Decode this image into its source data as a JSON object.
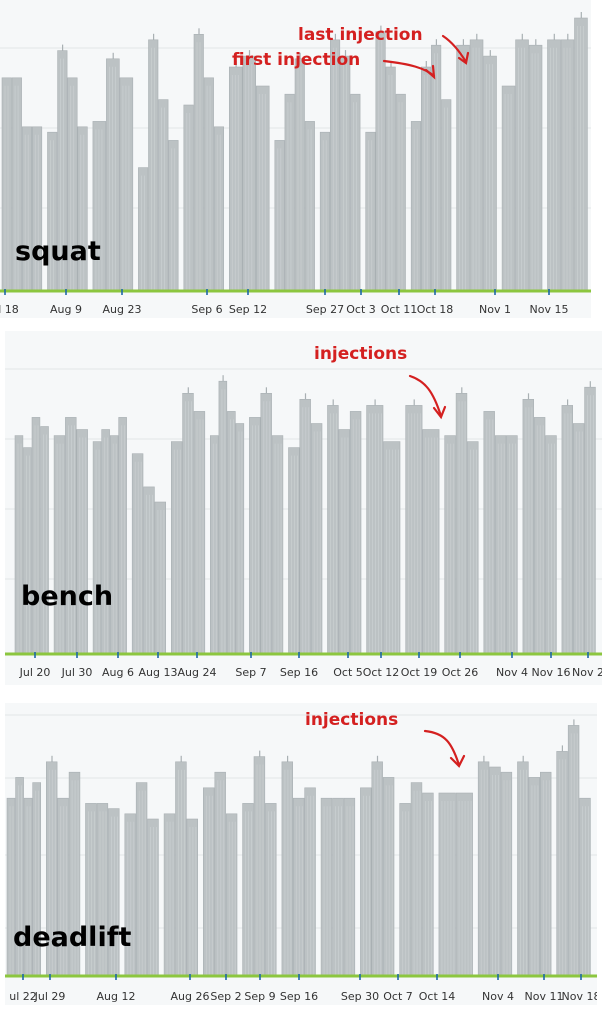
{
  "colors": {
    "bar": "#bcc2c4",
    "bar_edge": "#a9b0b3",
    "axis": "#8cc63f",
    "tick": "#1d67a8",
    "grid": "#e3e6e8",
    "annotation": "#d42020",
    "panel_bg": "#f6f8f9"
  },
  "chart_data": [
    {
      "type": "bar",
      "name": "squat",
      "annotations": [
        "last injection",
        "first injection"
      ],
      "xtick_labels": [
        "ul 18",
        "Aug 9",
        "Aug 23",
        "Sep 6",
        "Sep 12",
        "Sep 27",
        "Oct 3",
        "Oct 11",
        "Oct 18",
        "Nov 1",
        "Nov 15"
      ],
      "ylim": [
        0,
        1
      ],
      "groups": [
        [
          0.78,
          0.78,
          0.6,
          0.6
        ],
        [
          0.58,
          0.88,
          0.78,
          0.6
        ],
        [
          0.62,
          0.85,
          0.78
        ],
        [
          0.45,
          0.92,
          0.7,
          0.55
        ],
        [
          0.68,
          0.94,
          0.78,
          0.6
        ],
        [
          0.82,
          0.86,
          0.75
        ],
        [
          0.55,
          0.72,
          0.85,
          0.62
        ],
        [
          0.58,
          0.92,
          0.86,
          0.72
        ],
        [
          0.58,
          0.95,
          0.82,
          0.72
        ],
        [
          0.62,
          0.82,
          0.9,
          0.7
        ],
        [
          0.9,
          0.92,
          0.86
        ],
        [
          0.75,
          0.92,
          0.9
        ],
        [
          0.92,
          0.92,
          1.0
        ]
      ]
    },
    {
      "type": "bar",
      "name": "bench",
      "annotations": [
        "injections"
      ],
      "xtick_labels": [
        "Jul 20",
        "Jul 30",
        "Aug 6",
        "Aug 13",
        "Aug 24",
        "Sep 7",
        "Sep 16",
        "Oct 5",
        "Oct 12",
        "Oct 19",
        "Oct 26",
        "Nov 4",
        "Nov 16",
        "Nov 2"
      ],
      "ylim": [
        0,
        1
      ],
      "groups": [
        [
          0.72,
          0.68,
          0.78,
          0.75
        ],
        [
          0.72,
          0.78,
          0.74
        ],
        [
          0.7,
          0.74,
          0.72,
          0.78
        ],
        [
          0.66,
          0.55,
          0.5
        ],
        [
          0.7,
          0.86,
          0.8
        ],
        [
          0.72,
          0.9,
          0.8,
          0.76
        ],
        [
          0.78,
          0.86,
          0.72
        ],
        [
          0.68,
          0.84,
          0.76
        ],
        [
          0.82,
          0.74,
          0.8
        ],
        [
          0.82,
          0.7
        ],
        [
          0.82,
          0.74
        ],
        [
          0.72,
          0.86,
          0.7
        ],
        [
          0.8,
          0.72,
          0.72
        ],
        [
          0.84,
          0.78,
          0.72
        ],
        [
          0.82,
          0.76,
          0.88
        ]
      ]
    },
    {
      "type": "bar",
      "name": "deadlift",
      "annotations": [
        "injections"
      ],
      "xtick_labels": [
        "ul 22",
        "Jul 29",
        "Aug 12",
        "Aug 26",
        "Sep 2",
        "Sep 9",
        "Sep 16",
        "Sep 30",
        "Oct 7",
        "Oct 14",
        "Nov 4",
        "Nov 11",
        "Nov 18"
      ],
      "ylim": [
        0,
        1
      ],
      "groups": [
        [
          0.68,
          0.76,
          0.68,
          0.74
        ],
        [
          0.82,
          0.68,
          0.78
        ],
        [
          0.66,
          0.66,
          0.64
        ],
        [
          0.62,
          0.74,
          0.6
        ],
        [
          0.62,
          0.82,
          0.6
        ],
        [
          0.72,
          0.78,
          0.62
        ],
        [
          0.66,
          0.84,
          0.66
        ],
        [
          0.82,
          0.68,
          0.72
        ],
        [
          0.68,
          0.68,
          0.68
        ],
        [
          0.72,
          0.82,
          0.76
        ],
        [
          0.66,
          0.74,
          0.7
        ],
        [
          0.7,
          0.7
        ],
        [
          0.82,
          0.8,
          0.78
        ],
        [
          0.82,
          0.76,
          0.78
        ],
        [
          0.86,
          0.96,
          0.68
        ]
      ]
    }
  ]
}
